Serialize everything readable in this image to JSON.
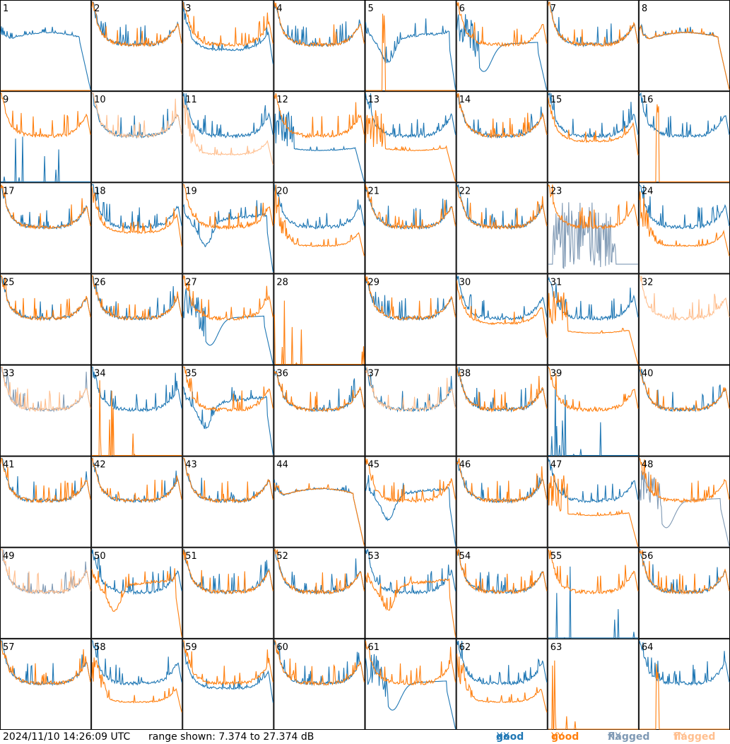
{
  "chart_data": {
    "type": "line",
    "panel_count": 64,
    "panel_labels": [
      "1",
      "2",
      "3",
      "4",
      "5",
      "6",
      "7",
      "8",
      "9",
      "10",
      "11",
      "12",
      "13",
      "14",
      "15",
      "16",
      "17",
      "18",
      "19",
      "20",
      "21",
      "22",
      "23",
      "24",
      "25",
      "26",
      "27",
      "28",
      "29",
      "30",
      "31",
      "32",
      "33",
      "34",
      "35",
      "36",
      "37",
      "38",
      "39",
      "40",
      "41",
      "42",
      "43",
      "44",
      "45",
      "46",
      "47",
      "48",
      "49",
      "50",
      "51",
      "52",
      "53",
      "54",
      "55",
      "56",
      "57",
      "58",
      "59",
      "60",
      "61",
      "62",
      "63",
      "64"
    ],
    "y_range_db": [
      7.374,
      27.374
    ],
    "colors": {
      "good_xx": "#1f77b4",
      "good_yy": "#ff7f0e",
      "flagged_xx": "#7f99b4",
      "flagged_yy": "#ffbf8f"
    },
    "panels": [
      {
        "xx": {
          "s": "flat",
          "f": false
        },
        "yy": {
          "s": "pinch",
          "f": false
        }
      },
      {
        "xx": {
          "s": "bowl",
          "f": false
        },
        "yy": {
          "s": "bowl",
          "f": false
        }
      },
      {
        "xx": {
          "s": "bowl_low",
          "f": false
        },
        "yy": {
          "s": "bowl",
          "f": false
        }
      },
      {
        "xx": {
          "s": "bowl",
          "f": false
        },
        "yy": {
          "s": "bowl",
          "f": false
        }
      },
      {
        "xx": {
          "s": "dip5",
          "f": false
        },
        "yy": {
          "s": "spike",
          "f": false
        }
      },
      {
        "xx": {
          "s": "dip6",
          "f": false
        },
        "yy": {
          "s": "bowl",
          "f": false
        }
      },
      {
        "xx": {
          "s": "bowl",
          "f": false
        },
        "yy": {
          "s": "bowl",
          "f": false
        }
      },
      {
        "xx": {
          "s": "flat",
          "f": false
        },
        "yy": {
          "s": "flat",
          "f": false
        }
      },
      {
        "xx": {
          "s": "spikes",
          "f": false
        },
        "yy": {
          "s": "bowl",
          "f": false
        }
      },
      {
        "xx": {
          "s": "bowl",
          "f": false
        },
        "yy": {
          "s": "bowl",
          "f": true
        }
      },
      {
        "xx": {
          "s": "bowl",
          "f": false
        },
        "yy": {
          "s": "lowbowl",
          "f": true
        }
      },
      {
        "xx": {
          "s": "dropflat",
          "f": false
        },
        "yy": {
          "s": "bowl",
          "f": false
        }
      },
      {
        "xx": {
          "s": "bowl",
          "f": false
        },
        "yy": {
          "s": "dropflat",
          "f": false
        }
      },
      {
        "xx": {
          "s": "bowl",
          "f": false
        },
        "yy": {
          "s": "bowl",
          "f": false
        }
      },
      {
        "xx": {
          "s": "bowl",
          "f": false
        },
        "yy": {
          "s": "bowl_low",
          "f": false
        }
      },
      {
        "xx": {
          "s": "bowl",
          "f": false
        },
        "yy": {
          "s": "spike",
          "f": false
        }
      },
      {
        "xx": {
          "s": "bowl",
          "f": false
        },
        "yy": {
          "s": "bowl",
          "f": false
        }
      },
      {
        "xx": {
          "s": "bowl",
          "f": false
        },
        "yy": {
          "s": "bowl_low",
          "f": false
        }
      },
      {
        "xx": {
          "s": "dip5",
          "f": false
        },
        "yy": {
          "s": "bowl",
          "f": false
        }
      },
      {
        "xx": {
          "s": "bowl",
          "f": false
        },
        "yy": {
          "s": "lowbowl",
          "f": false
        }
      },
      {
        "xx": {
          "s": "bowl",
          "f": false
        },
        "yy": {
          "s": "bowl",
          "f": false
        }
      },
      {
        "xx": {
          "s": "bowl",
          "f": false
        },
        "yy": {
          "s": "bowl",
          "f": false
        }
      },
      {
        "xx": {
          "s": "noise",
          "f": true
        },
        "yy": {
          "s": "bowl",
          "f": false
        }
      },
      {
        "xx": {
          "s": "bowl",
          "f": false
        },
        "yy": {
          "s": "lowbowl",
          "f": false
        }
      },
      {
        "xx": {
          "s": "bowl",
          "f": false
        },
        "yy": {
          "s": "bowl",
          "f": false
        }
      },
      {
        "xx": {
          "s": "bowl",
          "f": false
        },
        "yy": {
          "s": "bowl",
          "f": false
        }
      },
      {
        "xx": {
          "s": "dip6",
          "f": false
        },
        "yy": {
          "s": "bowl",
          "f": false
        }
      },
      {
        "xx": {
          "s": "none",
          "f": false
        },
        "yy": {
          "s": "spikes",
          "f": false
        }
      },
      {
        "xx": {
          "s": "bowl",
          "f": false
        },
        "yy": {
          "s": "bowl",
          "f": false
        }
      },
      {
        "xx": {
          "s": "bowl",
          "f": false
        },
        "yy": {
          "s": "bowl_low",
          "f": false
        }
      },
      {
        "xx": {
          "s": "bowl",
          "f": false
        },
        "yy": {
          "s": "dropflat",
          "f": false
        }
      },
      {
        "xx": {
          "s": "none",
          "f": false
        },
        "yy": {
          "s": "bowl",
          "f": true
        }
      },
      {
        "xx": {
          "s": "bowl",
          "f": true
        },
        "yy": {
          "s": "bowl",
          "f": true
        }
      },
      {
        "xx": {
          "s": "bowl",
          "f": false
        },
        "yy": {
          "s": "spikes",
          "f": false
        }
      },
      {
        "xx": {
          "s": "dip5",
          "f": false
        },
        "yy": {
          "s": "bowl",
          "f": false
        }
      },
      {
        "xx": {
          "s": "bowl",
          "f": false
        },
        "yy": {
          "s": "bowl",
          "f": false
        }
      },
      {
        "xx": {
          "s": "bowl",
          "f": false
        },
        "yy": {
          "s": "bowl",
          "f": true
        }
      },
      {
        "xx": {
          "s": "bowl",
          "f": false
        },
        "yy": {
          "s": "bowl",
          "f": false
        }
      },
      {
        "xx": {
          "s": "spikes",
          "f": false
        },
        "yy": {
          "s": "bowl",
          "f": false
        }
      },
      {
        "xx": {
          "s": "bowl",
          "f": false
        },
        "yy": {
          "s": "bowl",
          "f": false
        }
      },
      {
        "xx": {
          "s": "bowl",
          "f": false
        },
        "yy": {
          "s": "bowl",
          "f": false
        }
      },
      {
        "xx": {
          "s": "bowl",
          "f": false
        },
        "yy": {
          "s": "bowl",
          "f": false
        }
      },
      {
        "xx": {
          "s": "bowl",
          "f": false
        },
        "yy": {
          "s": "bowl",
          "f": false
        }
      },
      {
        "xx": {
          "s": "flat",
          "f": false
        },
        "yy": {
          "s": "flat",
          "f": false
        }
      },
      {
        "xx": {
          "s": "dip5",
          "f": false
        },
        "yy": {
          "s": "bowl",
          "f": false
        }
      },
      {
        "xx": {
          "s": "bowl",
          "f": false
        },
        "yy": {
          "s": "bowl",
          "f": false
        }
      },
      {
        "xx": {
          "s": "bowl",
          "f": false
        },
        "yy": {
          "s": "dropflat",
          "f": false
        }
      },
      {
        "xx": {
          "s": "dip6",
          "f": true
        },
        "yy": {
          "s": "bowl",
          "f": false
        }
      },
      {
        "xx": {
          "s": "bowl",
          "f": true
        },
        "yy": {
          "s": "bowl",
          "f": true
        }
      },
      {
        "xx": {
          "s": "bowl",
          "f": false
        },
        "yy": {
          "s": "dip5",
          "f": false
        }
      },
      {
        "xx": {
          "s": "bowl",
          "f": false
        },
        "yy": {
          "s": "bowl",
          "f": false
        }
      },
      {
        "xx": {
          "s": "bowl",
          "f": false
        },
        "yy": {
          "s": "bowl",
          "f": false
        }
      },
      {
        "xx": {
          "s": "bowl",
          "f": false
        },
        "yy": {
          "s": "dip5",
          "f": false
        }
      },
      {
        "xx": {
          "s": "bowl",
          "f": false
        },
        "yy": {
          "s": "bowl",
          "f": false
        }
      },
      {
        "xx": {
          "s": "spikes",
          "f": false
        },
        "yy": {
          "s": "bowl",
          "f": false
        }
      },
      {
        "xx": {
          "s": "bowl",
          "f": false
        },
        "yy": {
          "s": "bowl",
          "f": false
        }
      },
      {
        "xx": {
          "s": "bowl",
          "f": false
        },
        "yy": {
          "s": "bowl",
          "f": false
        }
      },
      {
        "xx": {
          "s": "bowl",
          "f": false
        },
        "yy": {
          "s": "lowbowl",
          "f": false
        }
      },
      {
        "xx": {
          "s": "bowl_low",
          "f": false
        },
        "yy": {
          "s": "bowl",
          "f": false
        }
      },
      {
        "xx": {
          "s": "bowl",
          "f": false
        },
        "yy": {
          "s": "bowl",
          "f": false
        }
      },
      {
        "xx": {
          "s": "dip6",
          "f": false
        },
        "yy": {
          "s": "bowl",
          "f": false
        }
      },
      {
        "xx": {
          "s": "bowl",
          "f": false
        },
        "yy": {
          "s": "lowbowl",
          "f": false
        }
      },
      {
        "xx": {
          "s": "none",
          "f": false
        },
        "yy": {
          "s": "spikes",
          "f": false
        }
      },
      {
        "xx": {
          "s": "bowl",
          "f": false
        },
        "yy": {
          "s": "spike",
          "f": false
        }
      }
    ]
  },
  "footer": {
    "timestamp": "2024/11/10 14:26:09 UTC",
    "range": "range shown: 7.374 to 27.374 dB",
    "legend": [
      {
        "name": "good",
        "marker": "XX",
        "color": "#1f77b4"
      },
      {
        "name": "good",
        "marker": "YY",
        "color": "#ff7f0e"
      },
      {
        "name": "flagged",
        "marker": "XX",
        "color": "#7f99b4"
      },
      {
        "name": "flagged",
        "marker": "YY",
        "color": "#ffbf8f"
      }
    ]
  }
}
